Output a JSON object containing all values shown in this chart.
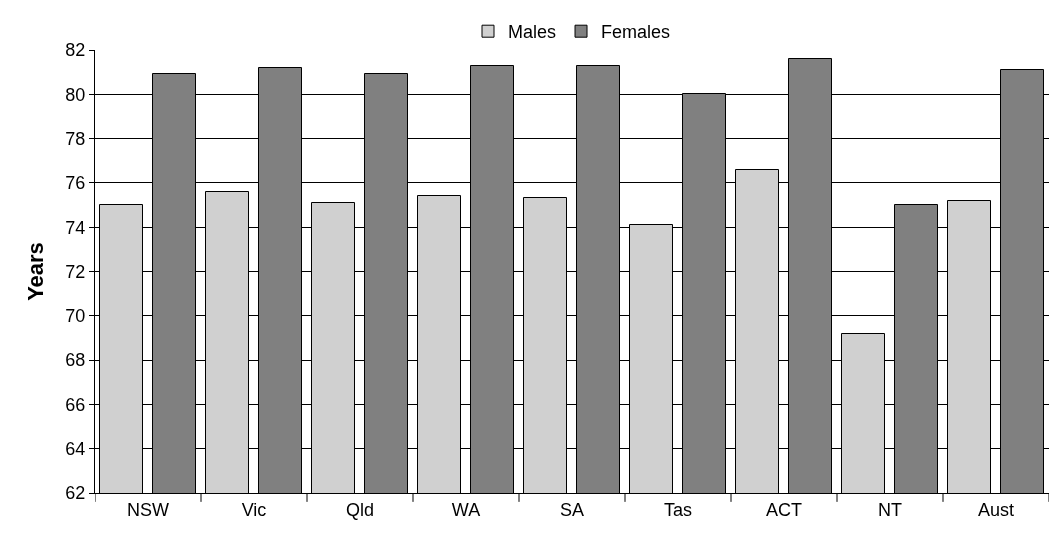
{
  "chart_data": {
    "type": "bar",
    "ylabel": "Years",
    "categories": [
      "NSW",
      "Vic",
      "Qld",
      "WA",
      "SA",
      "Tas",
      "ACT",
      "NT",
      "Aust"
    ],
    "series": [
      {
        "name": "Males",
        "color": "#d0d0d0",
        "values": [
          75.0,
          75.6,
          75.1,
          75.4,
          75.3,
          74.1,
          76.6,
          69.2,
          75.2
        ]
      },
      {
        "name": "Females",
        "color": "#808080",
        "values": [
          80.9,
          81.2,
          80.9,
          81.3,
          81.3,
          80.0,
          81.6,
          75.0,
          81.1
        ]
      }
    ],
    "ylim": [
      62,
      82
    ],
    "yticks": [
      62,
      64,
      66,
      68,
      70,
      72,
      74,
      76,
      78,
      80,
      82
    ],
    "grid": "y",
    "legend": "top"
  }
}
